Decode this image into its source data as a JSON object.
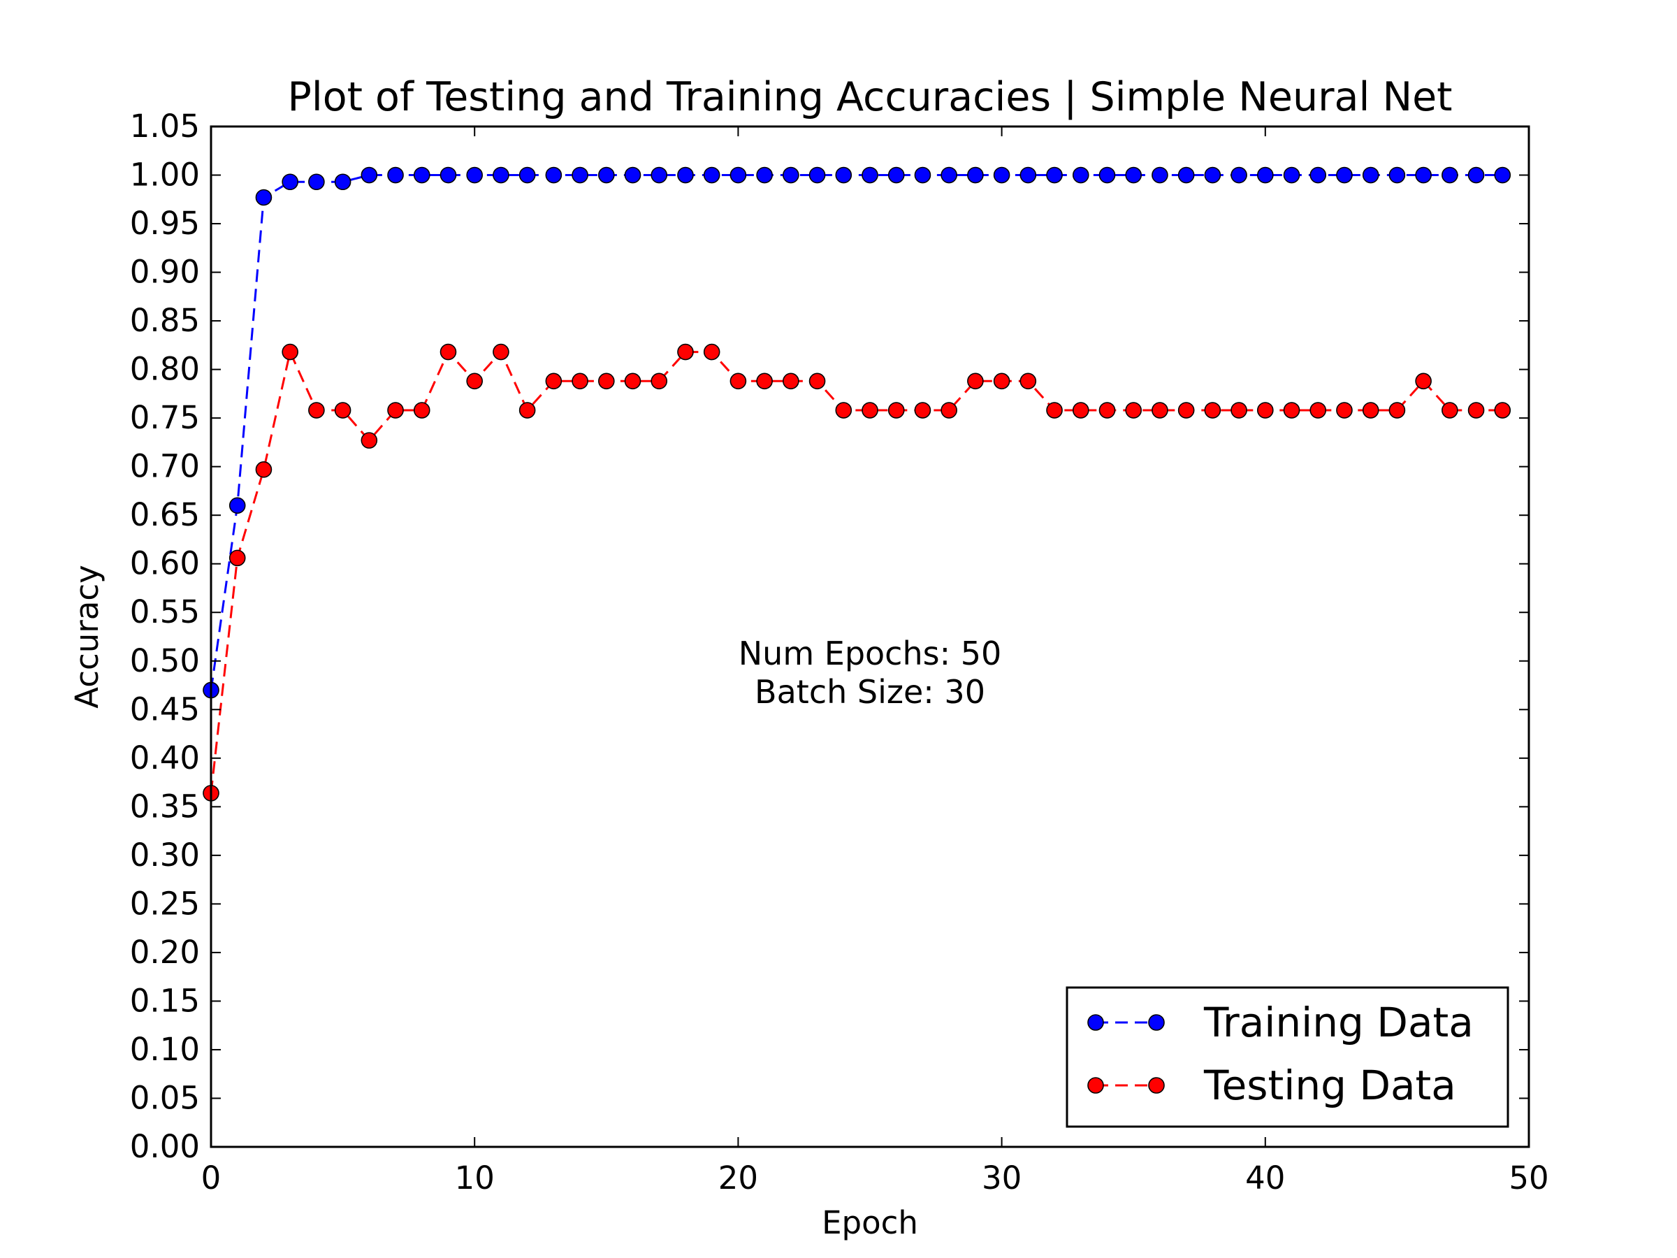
{
  "chart_data": {
    "type": "line",
    "title": "Plot of Testing and Training Accuracies | Simple Neural Net",
    "xlabel": "Epoch",
    "ylabel": "Accuracy",
    "xlim": [
      0,
      50
    ],
    "ylim": [
      0,
      1.05
    ],
    "x_ticks": [
      "0",
      "10",
      "20",
      "30",
      "40",
      "50"
    ],
    "y_ticks": [
      "0.00",
      "0.05",
      "0.10",
      "0.15",
      "0.20",
      "0.25",
      "0.30",
      "0.35",
      "0.40",
      "0.45",
      "0.50",
      "0.55",
      "0.60",
      "0.65",
      "0.70",
      "0.75",
      "0.80",
      "0.85",
      "0.90",
      "0.95",
      "1.00",
      "1.05"
    ],
    "grid": false,
    "legend_position": "bottom-right",
    "annotation": [
      "Num Epochs: 50",
      "Batch Size: 30"
    ],
    "x": [
      0,
      1,
      2,
      3,
      4,
      5,
      6,
      7,
      8,
      9,
      10,
      11,
      12,
      13,
      14,
      15,
      16,
      17,
      18,
      19,
      20,
      21,
      22,
      23,
      24,
      25,
      26,
      27,
      28,
      29,
      30,
      31,
      32,
      33,
      34,
      35,
      36,
      37,
      38,
      39,
      40,
      41,
      42,
      43,
      44,
      45,
      46,
      47,
      48,
      49
    ],
    "series": [
      {
        "name": "Training Data",
        "color": "#0000ff",
        "line_style": "dashed",
        "marker": "circle",
        "values": [
          0.47,
          0.66,
          0.977,
          0.993,
          0.993,
          0.993,
          1.0,
          1.0,
          1.0,
          1.0,
          1.0,
          1.0,
          1.0,
          1.0,
          1.0,
          1.0,
          1.0,
          1.0,
          1.0,
          1.0,
          1.0,
          1.0,
          1.0,
          1.0,
          1.0,
          1.0,
          1.0,
          1.0,
          1.0,
          1.0,
          1.0,
          1.0,
          1.0,
          1.0,
          1.0,
          1.0,
          1.0,
          1.0,
          1.0,
          1.0,
          1.0,
          1.0,
          1.0,
          1.0,
          1.0,
          1.0,
          1.0,
          1.0,
          1.0,
          1.0
        ]
      },
      {
        "name": "Testing Data",
        "color": "#ff0000",
        "line_style": "dashed",
        "marker": "circle",
        "values": [
          0.364,
          0.606,
          0.697,
          0.818,
          0.758,
          0.758,
          0.727,
          0.758,
          0.758,
          0.818,
          0.788,
          0.818,
          0.758,
          0.788,
          0.788,
          0.788,
          0.788,
          0.788,
          0.818,
          0.818,
          0.788,
          0.788,
          0.788,
          0.788,
          0.758,
          0.758,
          0.758,
          0.758,
          0.758,
          0.788,
          0.788,
          0.788,
          0.758,
          0.758,
          0.758,
          0.758,
          0.758,
          0.758,
          0.758,
          0.758,
          0.758,
          0.758,
          0.758,
          0.758,
          0.758,
          0.758,
          0.788,
          0.758,
          0.758,
          0.758
        ]
      }
    ]
  }
}
